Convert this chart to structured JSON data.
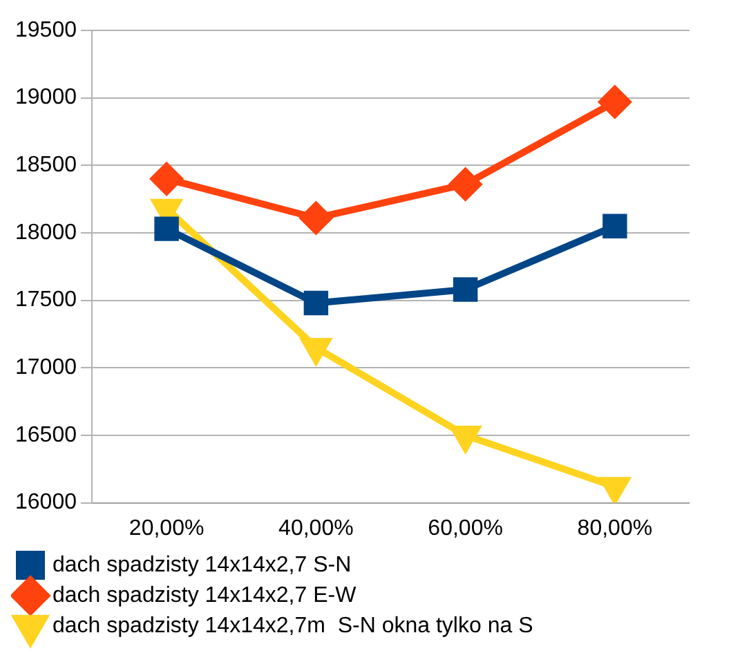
{
  "chart_data": {
    "type": "line",
    "categories": [
      "20,00%",
      "40,00%",
      "60,00%",
      "80,00%"
    ],
    "series": [
      {
        "name": "dach spadzisty 14x14x2,7 S-N",
        "color": "#004586",
        "marker": "square",
        "values": [
          18030,
          17480,
          17580,
          18050
        ]
      },
      {
        "name": "dach spadzisty 14x14x2,7 E-W",
        "color": "#ff420e",
        "marker": "diamond",
        "values": [
          18400,
          18110,
          18360,
          18970
        ]
      },
      {
        "name": "dach spadzisty 14x14x2,7m  S-N okna tylko na S",
        "color": "#ffd320",
        "marker": "triangle",
        "values": [
          18180,
          17150,
          16500,
          16120
        ]
      }
    ],
    "ylim": [
      16000,
      19500
    ],
    "yticks": [
      16000,
      16500,
      17000,
      17500,
      18000,
      18500,
      19000,
      19500
    ],
    "grid": "y",
    "legend": "bottom"
  }
}
